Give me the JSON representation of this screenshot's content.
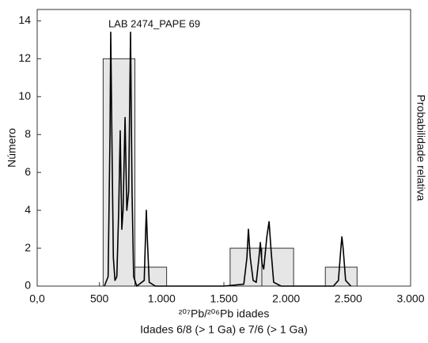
{
  "chart_data": {
    "type": "histogram",
    "annotation": "LAB 2474_PAPE 69",
    "x_label": "²⁰⁷Pb/²⁰⁶Pb idades",
    "subtitle": "Idades 6/8 (> 1 Ga) e 7/6 (> 1 Ga)",
    "y_label": "Número",
    "y2_label": "Probabilidade relativa",
    "bins": [
      530,
      785,
      1040,
      1295,
      1550,
      1805,
      2060,
      2315,
      2570
    ],
    "counts": [
      12,
      1,
      0,
      0,
      2,
      2,
      0,
      1
    ],
    "color": "#e6e6e6",
    "curve": {
      "color": "#000000",
      "x": [
        540,
        570,
        585,
        591,
        600,
        612,
        625,
        640,
        655,
        667,
        680,
        690,
        706,
        720,
        735,
        750,
        762,
        775,
        800,
        860,
        872,
        877,
        885,
        900,
        950,
        1500,
        1660,
        1685,
        1697,
        1712,
        1735,
        1760,
        1780,
        1793,
        1806,
        1820,
        1845,
        1863,
        1880,
        1900,
        1960,
        2380,
        2420,
        2440,
        2448,
        2458,
        2478,
        2520
      ],
      "values": [
        0,
        0.5,
        8,
        13.4,
        8,
        1.5,
        0.3,
        0.5,
        4,
        8.2,
        3,
        4,
        8.9,
        4,
        5,
        13.4,
        5,
        0.5,
        0,
        0.3,
        3,
        4.0,
        2.5,
        0.2,
        0,
        0,
        0.1,
        1.5,
        3.0,
        1.5,
        0.3,
        0.2,
        1.4,
        2.3,
        1.2,
        0.9,
        2.6,
        3.4,
        1.8,
        0.2,
        0,
        0,
        0.3,
        2.0,
        2.6,
        2.0,
        0.3,
        0
      ]
    },
    "xlim": [
      0,
      3000
    ],
    "ylim": [
      0,
      14.6
    ],
    "xticks": [
      {
        "value": 0,
        "label": "0,0"
      },
      500,
      {
        "value": 1000,
        "label": "1.000"
      },
      {
        "value": 1500,
        "label": "1.500"
      },
      {
        "value": 2000,
        "label": "2.000"
      },
      {
        "value": 2500,
        "label": "2.500"
      },
      {
        "value": 3000,
        "label": "3.000"
      }
    ],
    "yticks": [
      0,
      2,
      4,
      6,
      8,
      10,
      12,
      14
    ]
  }
}
